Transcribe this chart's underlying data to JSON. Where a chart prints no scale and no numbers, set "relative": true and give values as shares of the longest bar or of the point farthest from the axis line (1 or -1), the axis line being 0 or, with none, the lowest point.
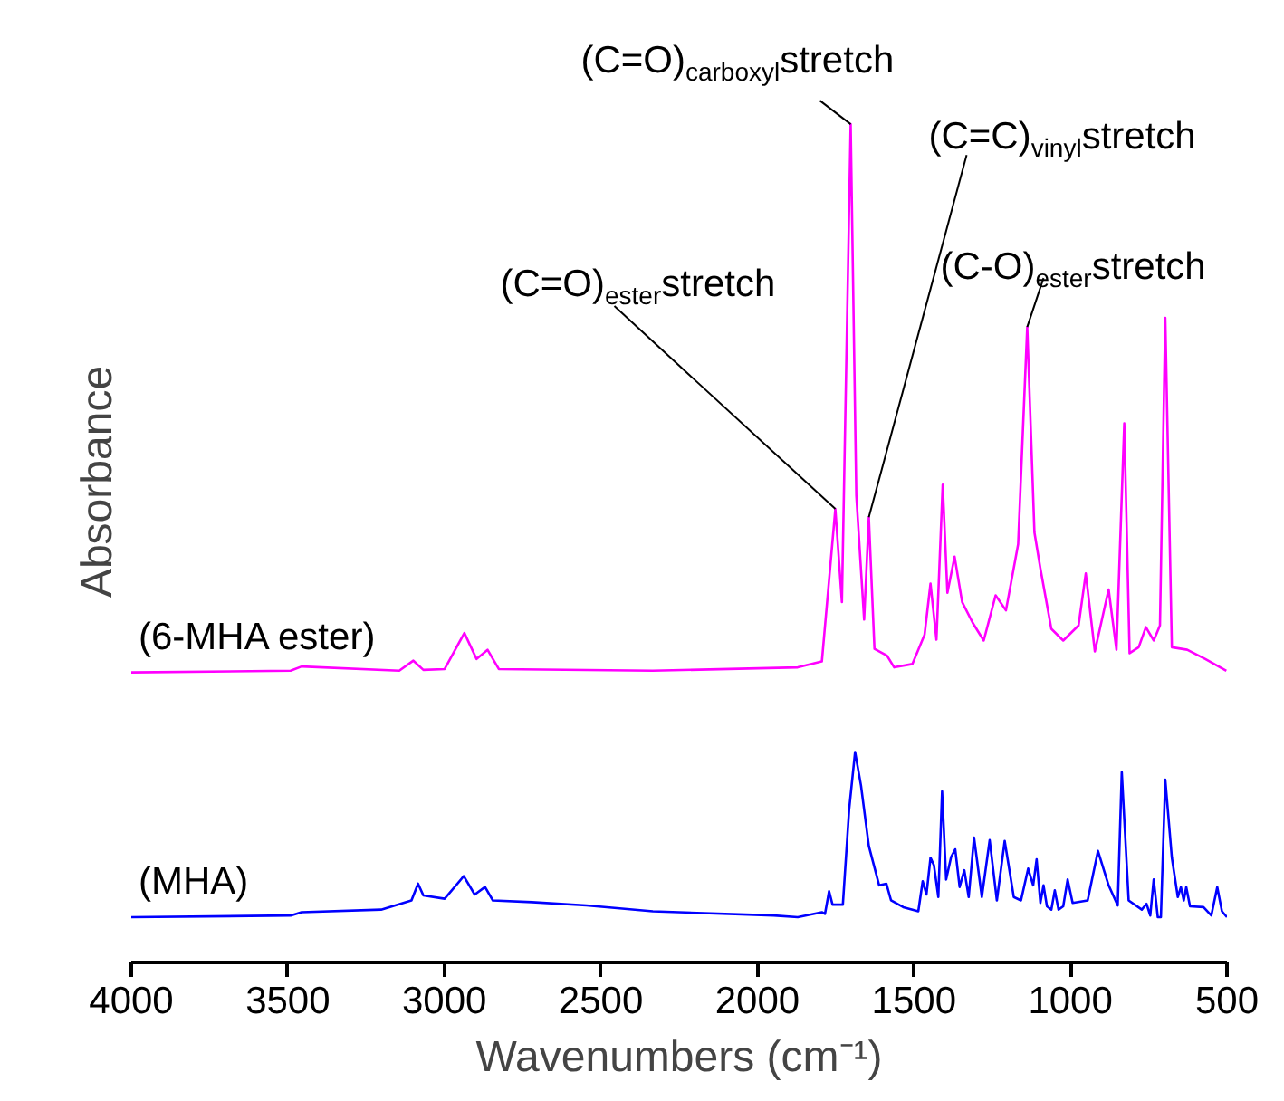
{
  "chart_data": {
    "type": "line",
    "relative": true,
    "xlabel": "Wavenumbers (cm⁻¹)",
    "ylabel": "Absorbance",
    "xlim": [
      4000,
      500
    ],
    "xticks": [
      4000,
      3500,
      3000,
      2500,
      2000,
      1500,
      1000,
      500
    ],
    "tick_labels": "x",
    "series": [
      {
        "name": "(6-MHA ester)",
        "color": "#ff00ff",
        "x": [
          4000,
          3491,
          3456,
          3144,
          3099,
          3067,
          2999,
          2936,
          2897,
          2862,
          2826,
          2334,
          1871,
          1794,
          1751,
          1730,
          1702,
          1684,
          1659,
          1644,
          1626,
          1586,
          1563,
          1505,
          1466,
          1447,
          1428,
          1408,
          1393,
          1370,
          1346,
          1312,
          1277,
          1239,
          1206,
          1167,
          1138,
          1115,
          1096,
          1061,
          1023,
          974,
          951,
          922,
          878,
          853,
          828,
          811,
          782,
          759,
          734,
          714,
          697,
          676,
          627,
          569,
          502
        ],
        "values": [
          0.346,
          0.348,
          0.353,
          0.348,
          0.36,
          0.349,
          0.35,
          0.393,
          0.362,
          0.373,
          0.35,
          0.348,
          0.352,
          0.359,
          0.541,
          0.43,
          1.0,
          0.557,
          0.409,
          0.531,
          0.374,
          0.366,
          0.352,
          0.356,
          0.391,
          0.452,
          0.385,
          0.57,
          0.441,
          0.484,
          0.43,
          0.405,
          0.384,
          0.438,
          0.42,
          0.499,
          0.758,
          0.513,
          0.47,
          0.398,
          0.384,
          0.402,
          0.464,
          0.371,
          0.445,
          0.373,
          0.643,
          0.369,
          0.376,
          0.4,
          0.384,
          0.402,
          0.769,
          0.376,
          0.373,
          0.362,
          0.348
        ]
      },
      {
        "name": "(MHA)",
        "color": "#0000ff",
        "x": [
          4000,
          3491,
          3456,
          3202,
          3105,
          3084,
          3067,
          2999,
          2938,
          2903,
          2870,
          2845,
          2720,
          2546,
          2334,
          1948,
          1871,
          1794,
          1784,
          1771,
          1760,
          1727,
          1707,
          1688,
          1669,
          1644,
          1611,
          1588,
          1573,
          1534,
          1486,
          1472,
          1460,
          1447,
          1436,
          1422,
          1410,
          1397,
          1381,
          1368,
          1354,
          1339,
          1325,
          1308,
          1283,
          1258,
          1235,
          1210,
          1181,
          1158,
          1135,
          1119,
          1108,
          1096,
          1086,
          1075,
          1061,
          1050,
          1038,
          1023,
          1009,
          993,
          945,
          912,
          878,
          849,
          836,
          814,
          772,
          757,
          745,
          734,
          721,
          711,
          697,
          676,
          657,
          647,
          638,
          630,
          618,
          575,
          550,
          531,
          516,
          500
        ],
        "values": [
          0.054,
          0.056,
          0.06,
          0.063,
          0.074,
          0.094,
          0.08,
          0.076,
          0.103,
          0.081,
          0.09,
          0.074,
          0.072,
          0.068,
          0.061,
          0.056,
          0.054,
          0.06,
          0.058,
          0.085,
          0.069,
          0.069,
          0.182,
          0.251,
          0.211,
          0.139,
          0.092,
          0.094,
          0.074,
          0.066,
          0.061,
          0.097,
          0.081,
          0.125,
          0.116,
          0.078,
          0.204,
          0.099,
          0.126,
          0.135,
          0.09,
          0.11,
          0.078,
          0.149,
          0.078,
          0.146,
          0.074,
          0.145,
          0.078,
          0.074,
          0.112,
          0.092,
          0.123,
          0.071,
          0.092,
          0.067,
          0.063,
          0.086,
          0.063,
          0.067,
          0.099,
          0.071,
          0.074,
          0.133,
          0.092,
          0.068,
          0.227,
          0.074,
          0.063,
          0.07,
          0.056,
          0.099,
          0.054,
          0.054,
          0.218,
          0.125,
          0.078,
          0.09,
          0.074,
          0.09,
          0.067,
          0.066,
          0.056,
          0.09,
          0.061,
          0.054
        ]
      }
    ],
    "annotations": [
      {
        "text": "(C=O)$_{ester}$stretch",
        "x": 1751,
        "y": 0.541
      },
      {
        "text": "(C=O)$_{carboxyl}$stretch",
        "x": 1702,
        "y": 1.0
      },
      {
        "text": "(C=C)$_{vinyl}$stretch",
        "x": 1644,
        "y": 0.531
      },
      {
        "text": "(C-O)$_{ester}$stretch",
        "x": 1138,
        "y": 0.758
      }
    ]
  }
}
